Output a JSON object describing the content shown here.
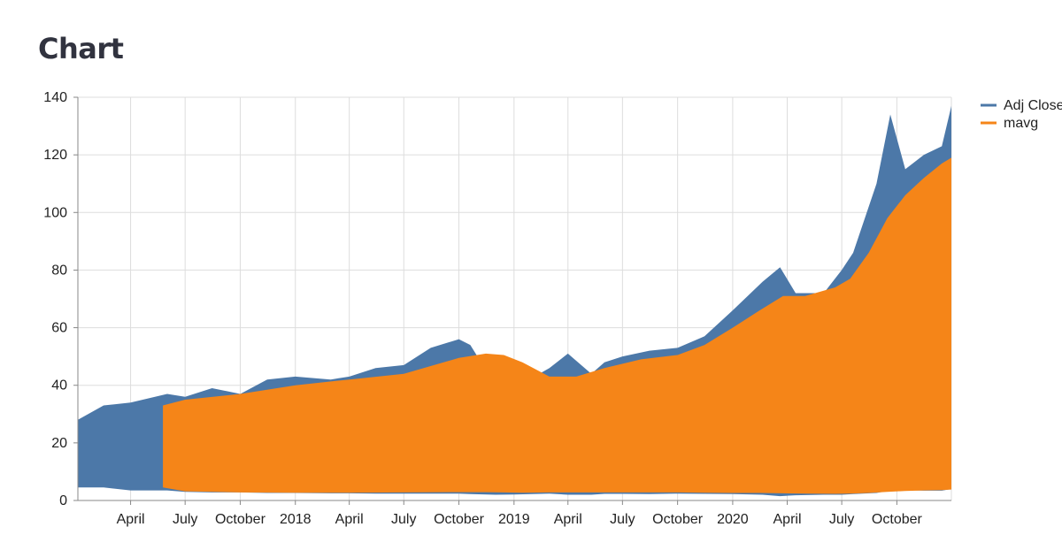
{
  "page": {
    "title": "Chart"
  },
  "chart_data": {
    "type": "area",
    "title": "",
    "xlabel": "",
    "ylabel": "",
    "stacked": false,
    "grid": true,
    "legend_position": "right",
    "xlim": [
      "2017-01-03",
      "2020-12-31"
    ],
    "ylim": [
      0,
      140
    ],
    "y_ticks": [
      0,
      20,
      40,
      60,
      80,
      100,
      120,
      140
    ],
    "x_ticks": [
      {
        "date": "2017-04-01",
        "label": "April"
      },
      {
        "date": "2017-07-01",
        "label": "July"
      },
      {
        "date": "2017-10-01",
        "label": "October"
      },
      {
        "date": "2018-01-01",
        "label": "2018"
      },
      {
        "date": "2018-04-01",
        "label": "April"
      },
      {
        "date": "2018-07-01",
        "label": "July"
      },
      {
        "date": "2018-10-01",
        "label": "October"
      },
      {
        "date": "2019-01-01",
        "label": "2019"
      },
      {
        "date": "2019-04-01",
        "label": "April"
      },
      {
        "date": "2019-07-01",
        "label": "July"
      },
      {
        "date": "2019-10-01",
        "label": "October"
      },
      {
        "date": "2020-01-01",
        "label": "2020"
      },
      {
        "date": "2020-04-01",
        "label": "April"
      },
      {
        "date": "2020-07-01",
        "label": "July"
      },
      {
        "date": "2020-10-01",
        "label": "October"
      }
    ],
    "series": [
      {
        "name": "Adj Close",
        "color": "#4c78a8",
        "x": [
          "2017-01-03",
          "2017-02-15",
          "2017-04-01",
          "2017-06-01",
          "2017-07-01",
          "2017-08-15",
          "2017-10-01",
          "2017-11-15",
          "2018-01-01",
          "2018-03-01",
          "2018-04-01",
          "2018-05-15",
          "2018-07-01",
          "2018-08-15",
          "2018-10-01",
          "2018-10-20",
          "2018-12-01",
          "2019-01-01",
          "2019-03-01",
          "2019-04-01",
          "2019-05-10",
          "2019-06-01",
          "2019-07-01",
          "2019-08-15",
          "2019-10-01",
          "2019-11-15",
          "2020-01-01",
          "2020-02-20",
          "2020-03-20",
          "2020-04-15",
          "2020-06-01",
          "2020-07-01",
          "2020-07-20",
          "2020-08-28",
          "2020-09-20",
          "2020-10-15",
          "2020-11-15",
          "2020-12-15",
          "2020-12-31"
        ],
        "upper": [
          28,
          33,
          34,
          37,
          36,
          39,
          37,
          42,
          43,
          42,
          43,
          46,
          47,
          53,
          56,
          54,
          40,
          39,
          46,
          51,
          44,
          48,
          50,
          52,
          53,
          57,
          66,
          76,
          81,
          72,
          72,
          80,
          86,
          110,
          134,
          115,
          120,
          123,
          137
        ],
        "lower": [
          4.5,
          4.5,
          3.5,
          3.5,
          3.0,
          2.8,
          2.8,
          2.6,
          2.6,
          2.5,
          2.5,
          2.4,
          2.4,
          2.4,
          2.4,
          2.2,
          2.0,
          2.1,
          2.4,
          2.0,
          2.0,
          2.3,
          2.3,
          2.2,
          2.4,
          2.3,
          2.2,
          2.0,
          1.5,
          1.8,
          2.0,
          2.0,
          2.2,
          2.6,
          3.5,
          3.6,
          3.4,
          3.4,
          4.0
        ]
      },
      {
        "name": "mavg",
        "color": "#f58518",
        "x": [
          "2017-05-25",
          "2017-07-01",
          "2017-10-01",
          "2018-01-01",
          "2018-04-01",
          "2018-07-01",
          "2018-10-01",
          "2018-11-15",
          "2018-12-15",
          "2019-01-15",
          "2019-03-01",
          "2019-04-15",
          "2019-06-01",
          "2019-08-01",
          "2019-10-01",
          "2019-11-15",
          "2020-01-01",
          "2020-02-15",
          "2020-03-25",
          "2020-05-01",
          "2020-06-20",
          "2020-07-15",
          "2020-08-15",
          "2020-09-15",
          "2020-10-15",
          "2020-11-15",
          "2020-12-15",
          "2020-12-31"
        ],
        "upper": [
          33,
          35,
          37,
          40,
          42,
          44,
          49.5,
          51,
          50.5,
          48,
          43,
          43,
          46,
          49,
          50.5,
          54,
          60,
          66,
          71,
          71,
          74,
          77,
          86,
          98,
          106,
          112,
          117,
          119
        ],
        "lower": [
          4.5,
          3.2,
          2.8,
          2.7,
          2.7,
          2.8,
          2.9,
          2.9,
          2.8,
          2.7,
          2.8,
          2.8,
          2.8,
          2.8,
          2.8,
          2.7,
          2.6,
          2.6,
          2.5,
          2.4,
          2.3,
          2.4,
          2.6,
          3.0,
          3.3,
          3.5,
          3.6,
          3.8
        ]
      }
    ]
  }
}
